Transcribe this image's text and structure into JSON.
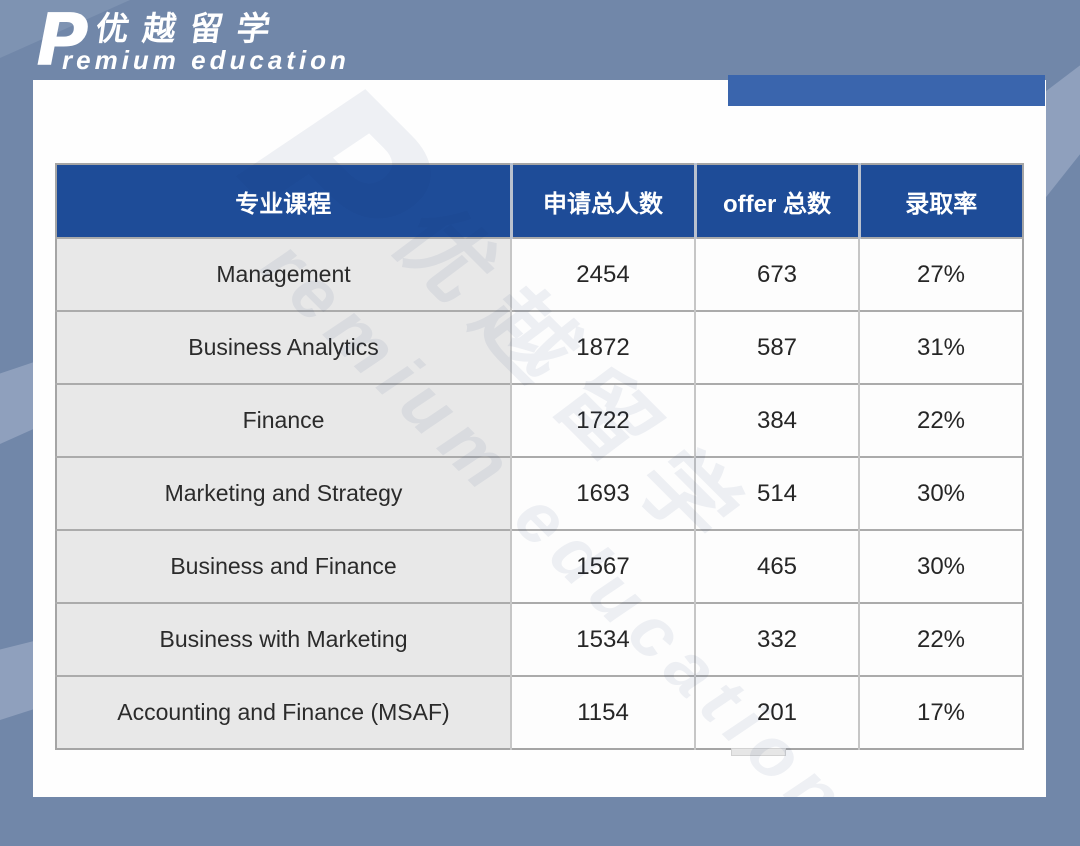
{
  "brand": {
    "logo_initial": "P",
    "logo_cn": "优越留学",
    "logo_en": "remium education"
  },
  "watermark": {
    "initial": "P",
    "cn": "优越留学",
    "en": "remium education"
  },
  "table": {
    "headers": [
      "专业课程",
      "申请总人数",
      "offer 总数",
      "录取率"
    ],
    "rows": [
      {
        "program": "Management",
        "applicants": "2454",
        "offers": "673",
        "rate": "27%"
      },
      {
        "program": "Business Analytics",
        "applicants": "1872",
        "offers": "587",
        "rate": "31%"
      },
      {
        "program": "Finance",
        "applicants": "1722",
        "offers": "384",
        "rate": "22%"
      },
      {
        "program": "Marketing and Strategy",
        "applicants": "1693",
        "offers": "514",
        "rate": "30%"
      },
      {
        "program": "Business and Finance",
        "applicants": "1567",
        "offers": "465",
        "rate": "30%"
      },
      {
        "program": "Business with Marketing",
        "applicants": "1534",
        "offers": "332",
        "rate": "22%"
      },
      {
        "program": "Accounting and Finance (MSAF)",
        "applicants": "1154",
        "offers": "201",
        "rate": "17%"
      }
    ]
  },
  "colors": {
    "background": "#7187A9",
    "background_stripe": "#8FA0BD",
    "header_blue": "#1E4C98",
    "accent_bar_blue": "#3A65AD",
    "first_column_gray": "#E8E8E8",
    "cell_white": "#FDFDFD",
    "logo_white": "#FFFFFF"
  }
}
